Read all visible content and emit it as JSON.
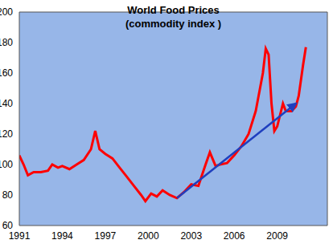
{
  "chart_data": {
    "type": "line",
    "title": "World Food Prices",
    "subtitle": "(commodity index )",
    "xlim": [
      1991,
      2012.5
    ],
    "xticks": [
      1991,
      1994,
      1997,
      2000,
      2003,
      2006,
      2009
    ],
    "ylim": [
      60,
      200
    ],
    "yticks": [
      60,
      80,
      100,
      120,
      140,
      160,
      180,
      200
    ],
    "grid": false,
    "series": [
      {
        "color": "#ff0000",
        "line_style": "solid",
        "x": [
          1991.0,
          1991.3,
          1991.6,
          1992.0,
          1992.5,
          1993.0,
          1993.3,
          1993.7,
          1994.0,
          1994.5,
          1995.0,
          1995.5,
          1996.0,
          1996.3,
          1996.6,
          1997.0,
          1997.5,
          1998.0,
          1998.5,
          1999.0,
          1999.5,
          1999.8,
          2000.2,
          2000.6,
          2001.0,
          2001.5,
          2002.0,
          2002.5,
          2003.0,
          2003.5,
          2004.0,
          2004.3,
          2004.7,
          2005.0,
          2005.5,
          2006.0,
          2006.5,
          2007.0,
          2007.5,
          2008.0,
          2008.2,
          2008.4,
          2008.6,
          2008.8,
          2009.0,
          2009.4,
          2009.6,
          2010.0,
          2010.3,
          2010.5,
          2010.8,
          2011.0
        ],
        "values": [
          106,
          100,
          93,
          95,
          95,
          96,
          100,
          98,
          99,
          97,
          100,
          103,
          110,
          122,
          110,
          107,
          104,
          98,
          92,
          86,
          80,
          76,
          81,
          79,
          83,
          80,
          78,
          82,
          87,
          86,
          100,
          108,
          99,
          100,
          101,
          106,
          112,
          120,
          135,
          160,
          176,
          172,
          140,
          122,
          125,
          140,
          135,
          135,
          138,
          145,
          165,
          177
        ]
      },
      {
        "color": "#1f3fbf",
        "line_style": "solid",
        "marker": "arrow",
        "x": [
          2002.0,
          2010.3
        ],
        "values": [
          78,
          140
        ]
      }
    ]
  }
}
